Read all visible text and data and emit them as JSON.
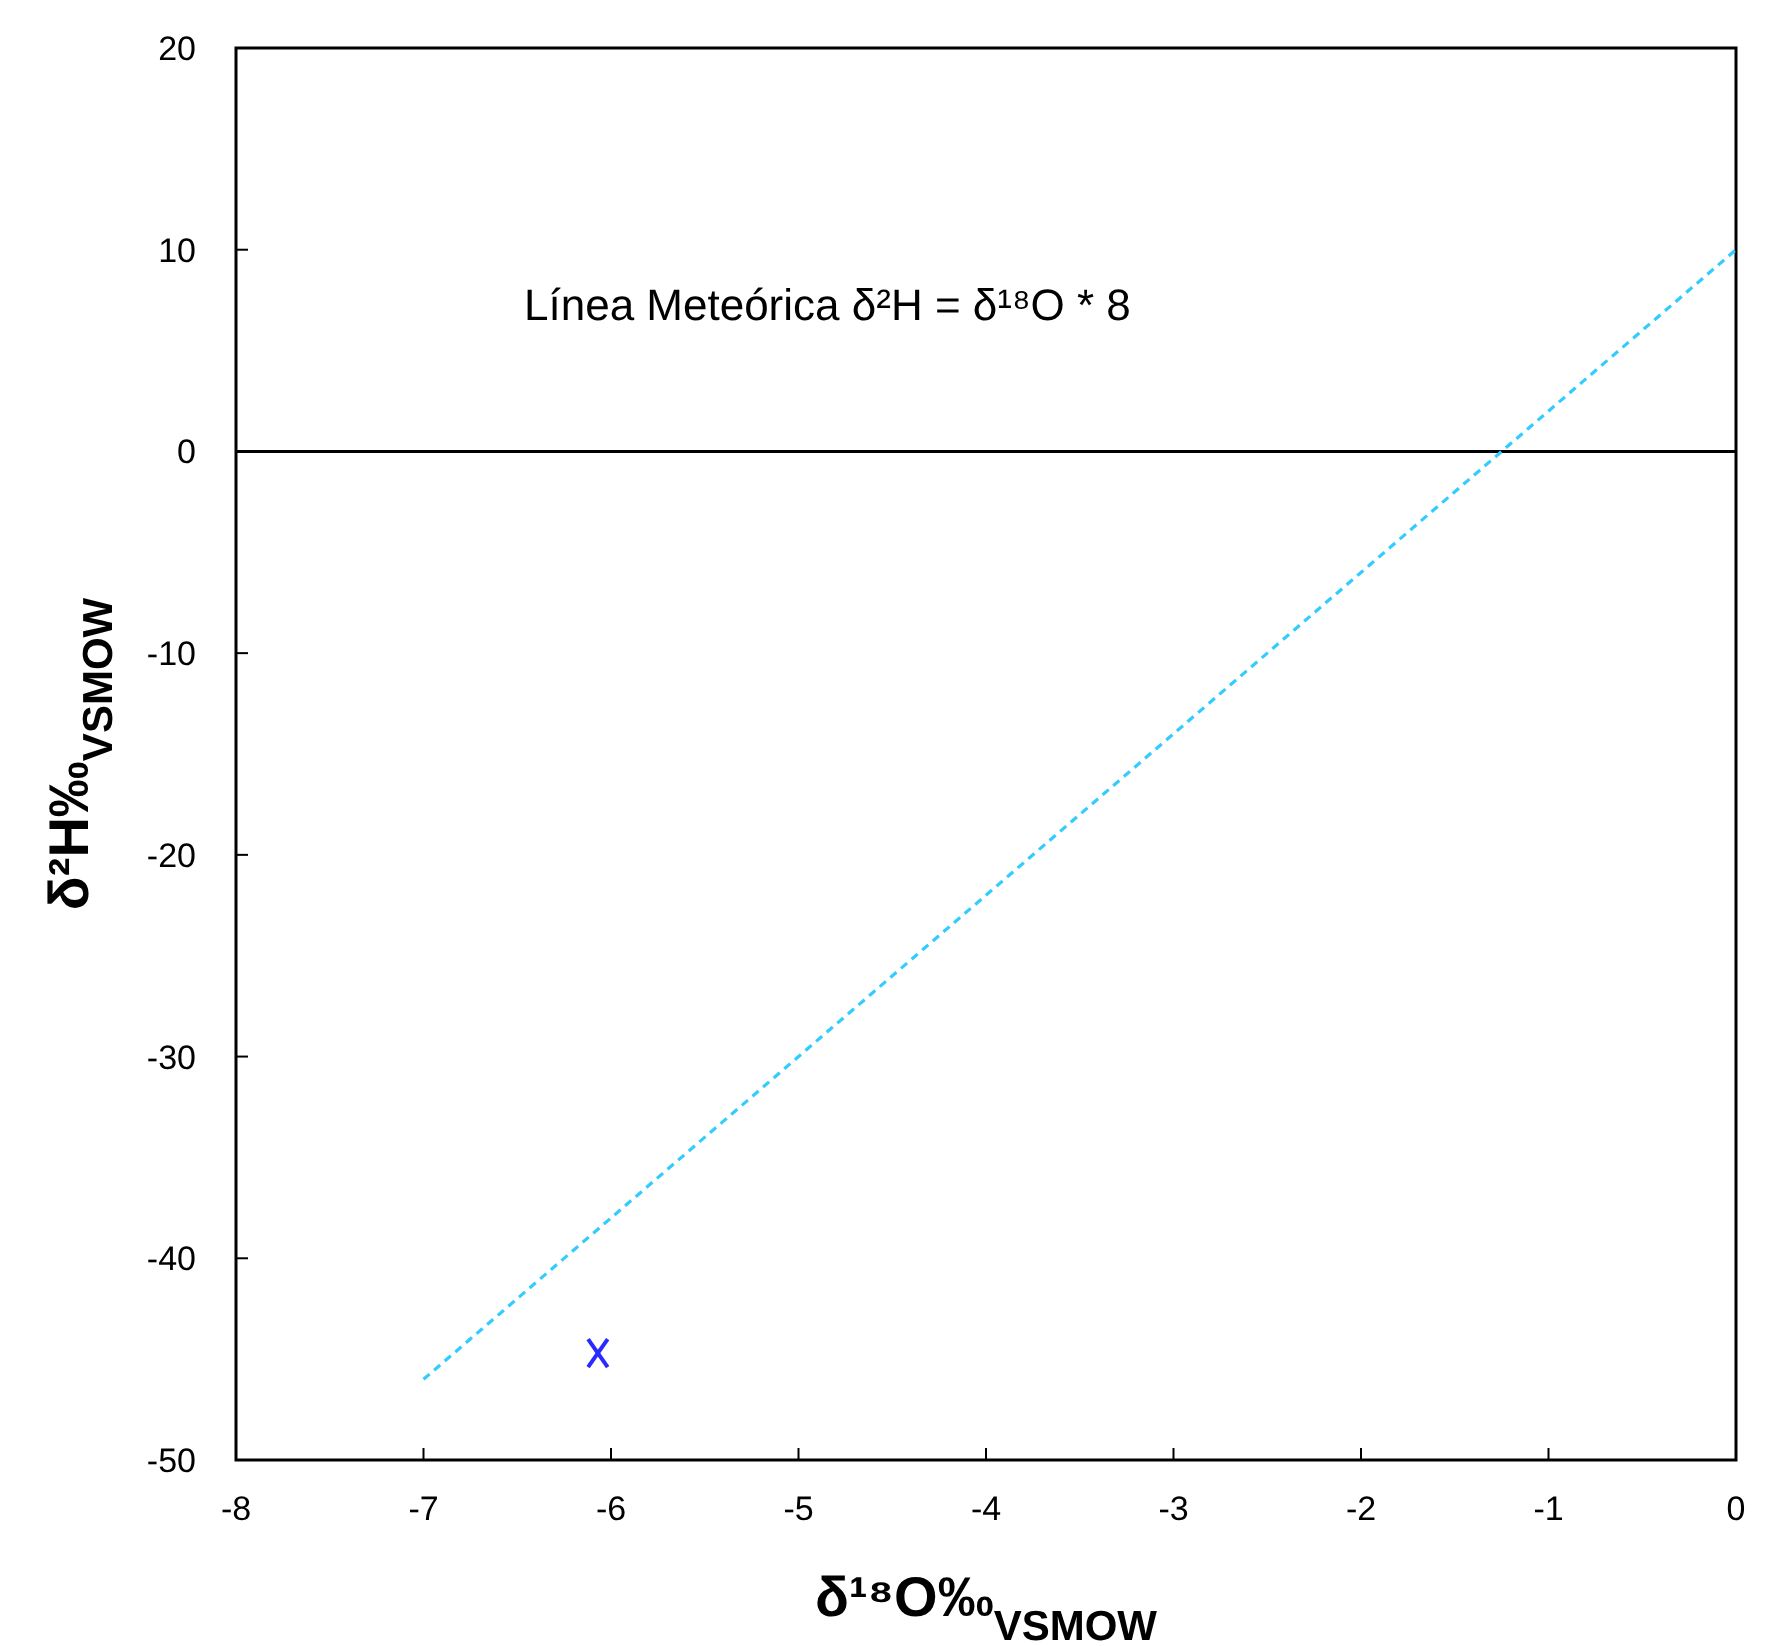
{
  "chart_data": {
    "type": "scatter",
    "xlabel": "δ¹⁸O‰$_{VSMOW}$",
    "ylabel": "δ²H‰$_{VSMOW}$",
    "annotations": [
      "Línea Meteórica δ²H = δ¹⁸O * 8"
    ],
    "series": [
      {
        "type": "line",
        "color": "#33ccff",
        "line_style": "dashed",
        "marker": "none",
        "x": [
          -7,
          0
        ],
        "values": [
          -46,
          10
        ]
      },
      {
        "type": "scatter",
        "color": "#2a2aff",
        "marker": "cross",
        "x": [
          -6.07
        ],
        "values": [
          -44.7
        ]
      }
    ],
    "xlim": [
      -8,
      0
    ],
    "xticks": [
      -8,
      -7,
      -6,
      -5,
      -4,
      -3,
      -2,
      -1,
      0
    ],
    "ylim": [
      -50,
      20
    ],
    "yticks": [
      -50,
      -40,
      -30,
      -20,
      -10,
      0,
      10,
      20
    ],
    "ref_lines": [
      {
        "axis": "y",
        "value": 0,
        "color": "#000000",
        "line_style": "solid"
      }
    ],
    "grid": false
  }
}
